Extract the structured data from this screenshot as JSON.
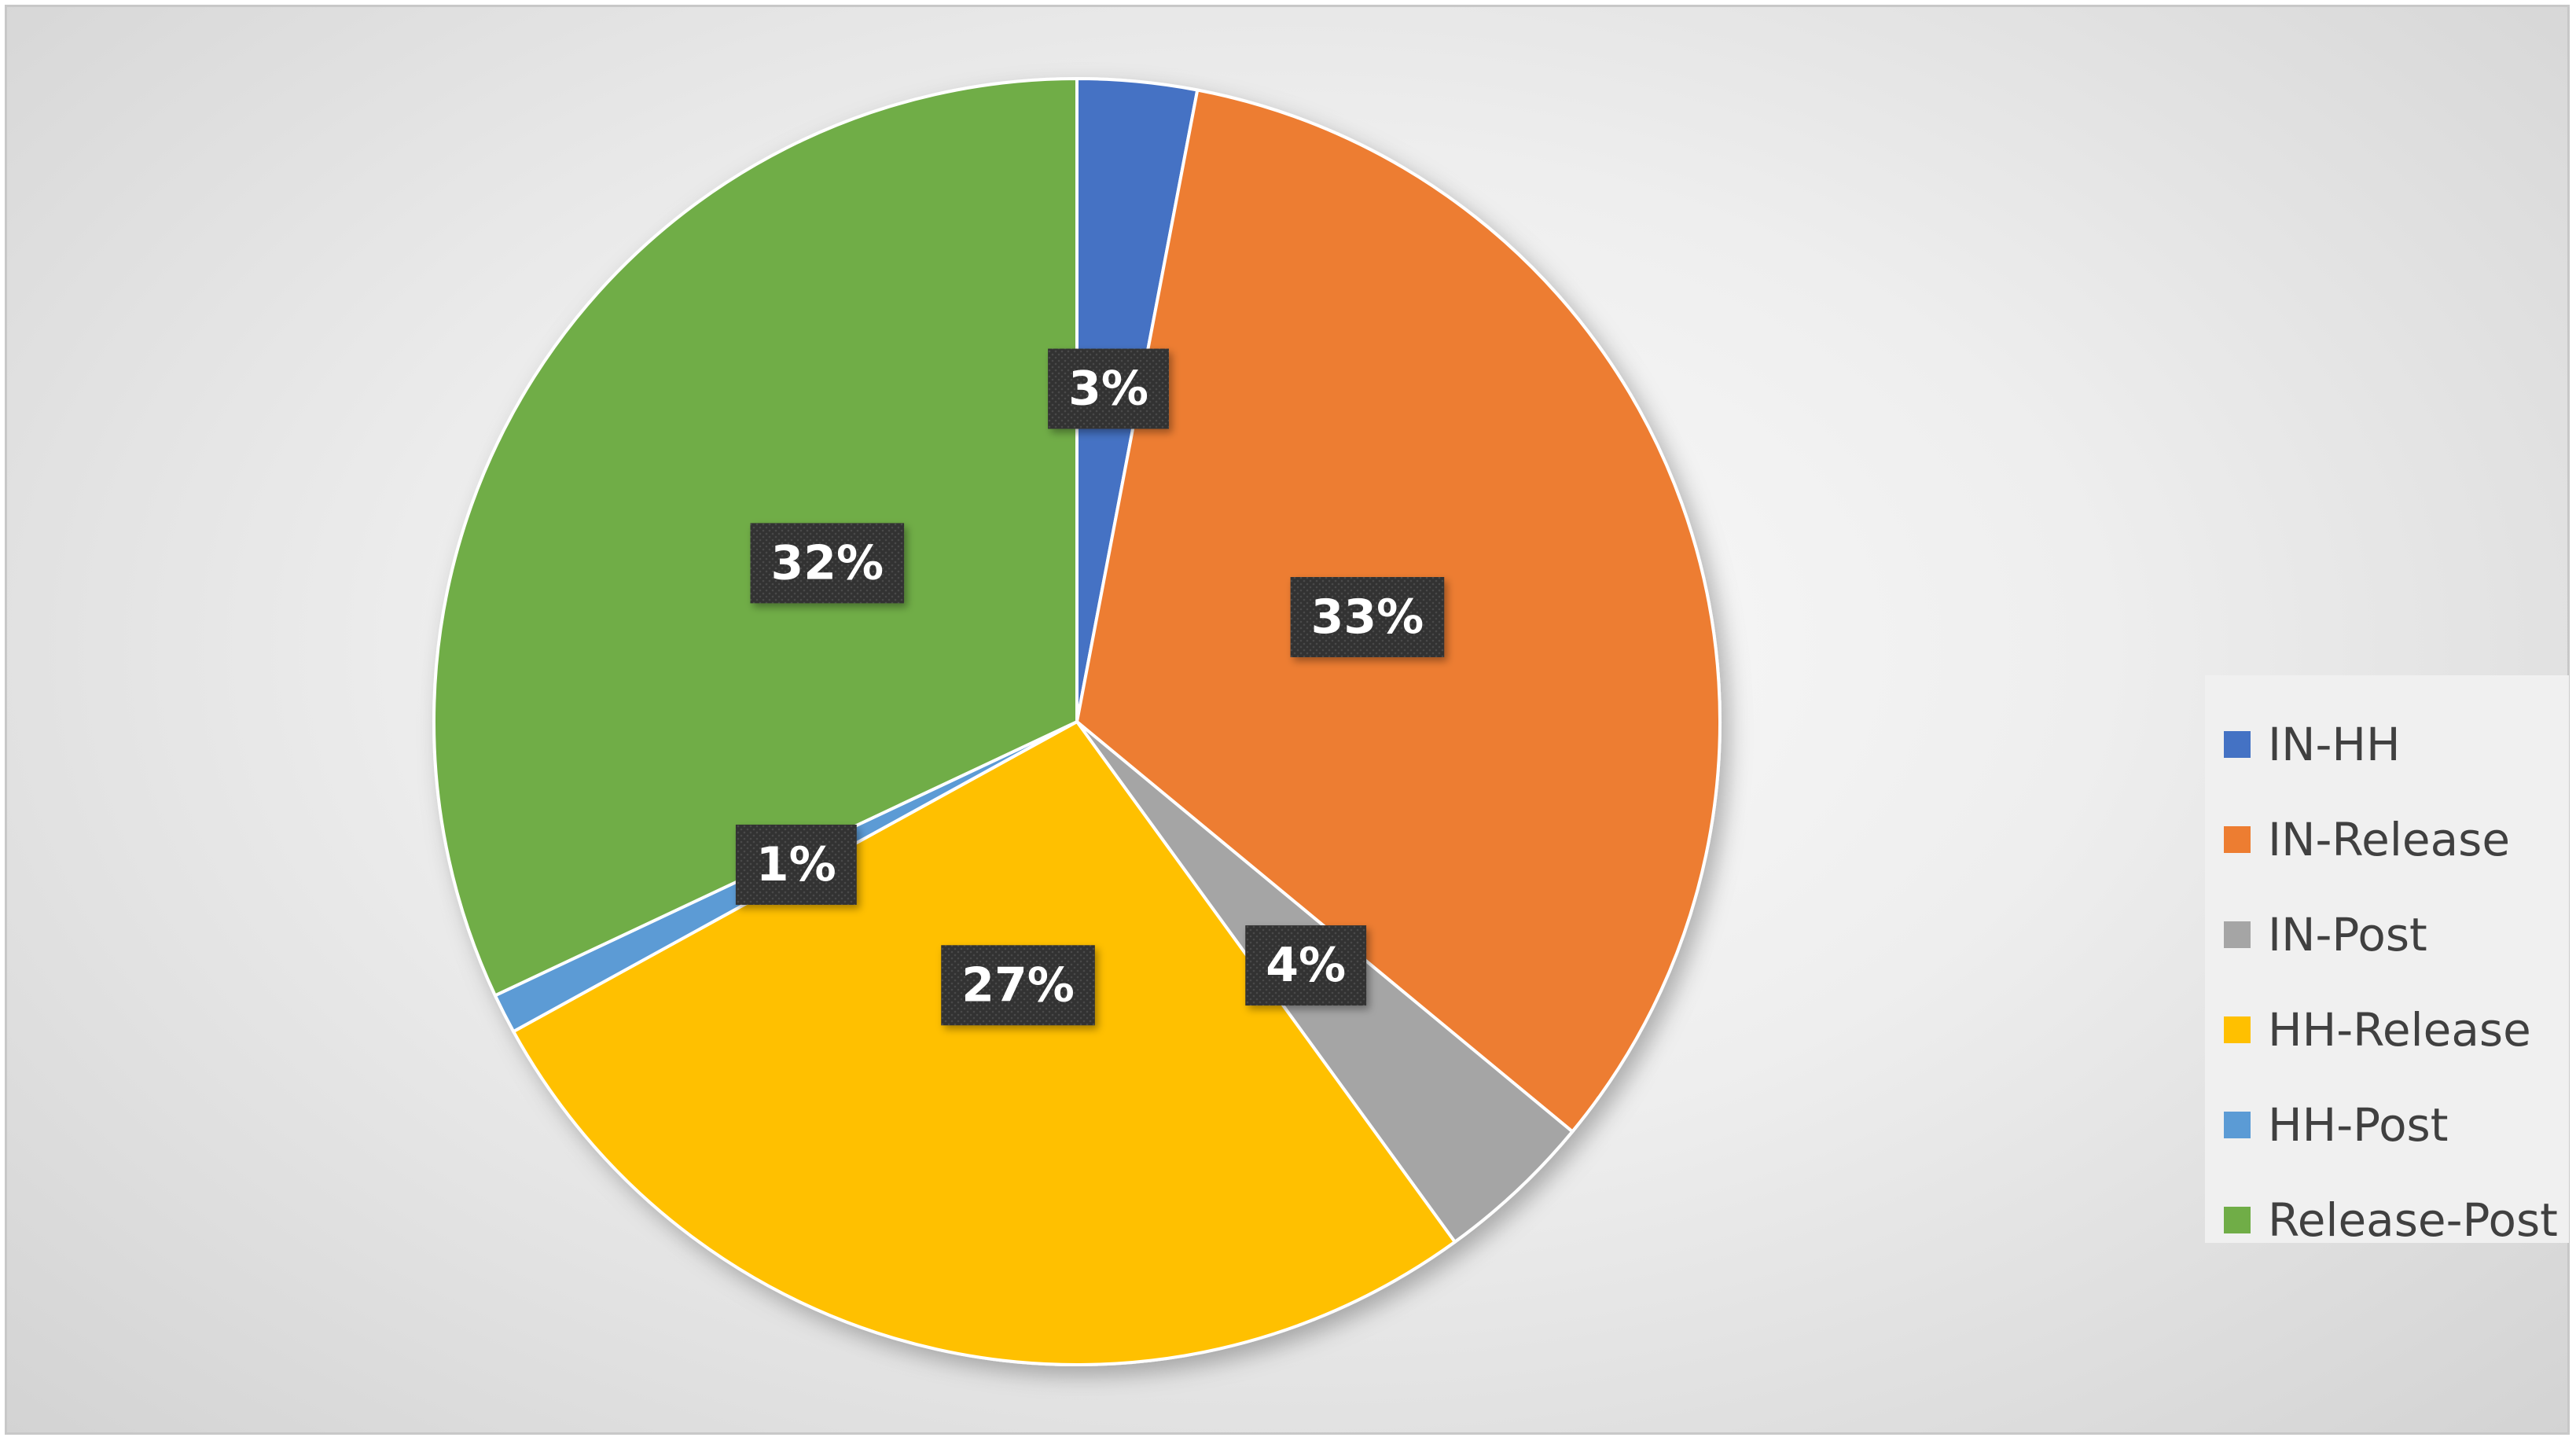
{
  "chart_data": {
    "type": "pie",
    "title": "",
    "slices": [
      {
        "label": "IN-HH",
        "value": 3,
        "value_label": "3%",
        "color": "#4472C4"
      },
      {
        "label": "IN-Release",
        "value": 33,
        "value_label": "33%",
        "color": "#ED7D31"
      },
      {
        "label": "IN-Post",
        "value": 4,
        "value_label": "4%",
        "color": "#A5A5A5"
      },
      {
        "label": "HH-Release",
        "value": 27,
        "value_label": "27%",
        "color": "#FFC000"
      },
      {
        "label": "HH-Post",
        "value": 1,
        "value_label": "1%",
        "color": "#5B9BD5"
      },
      {
        "label": "Release-Post",
        "value": 32,
        "value_label": "32%",
        "color": "#70AD47"
      }
    ],
    "start_angle_deg": 0,
    "direction": "clockwise",
    "legend_position": "right",
    "data_label_style": {
      "background": "#3a3a3a",
      "text_color": "#ffffff"
    }
  }
}
